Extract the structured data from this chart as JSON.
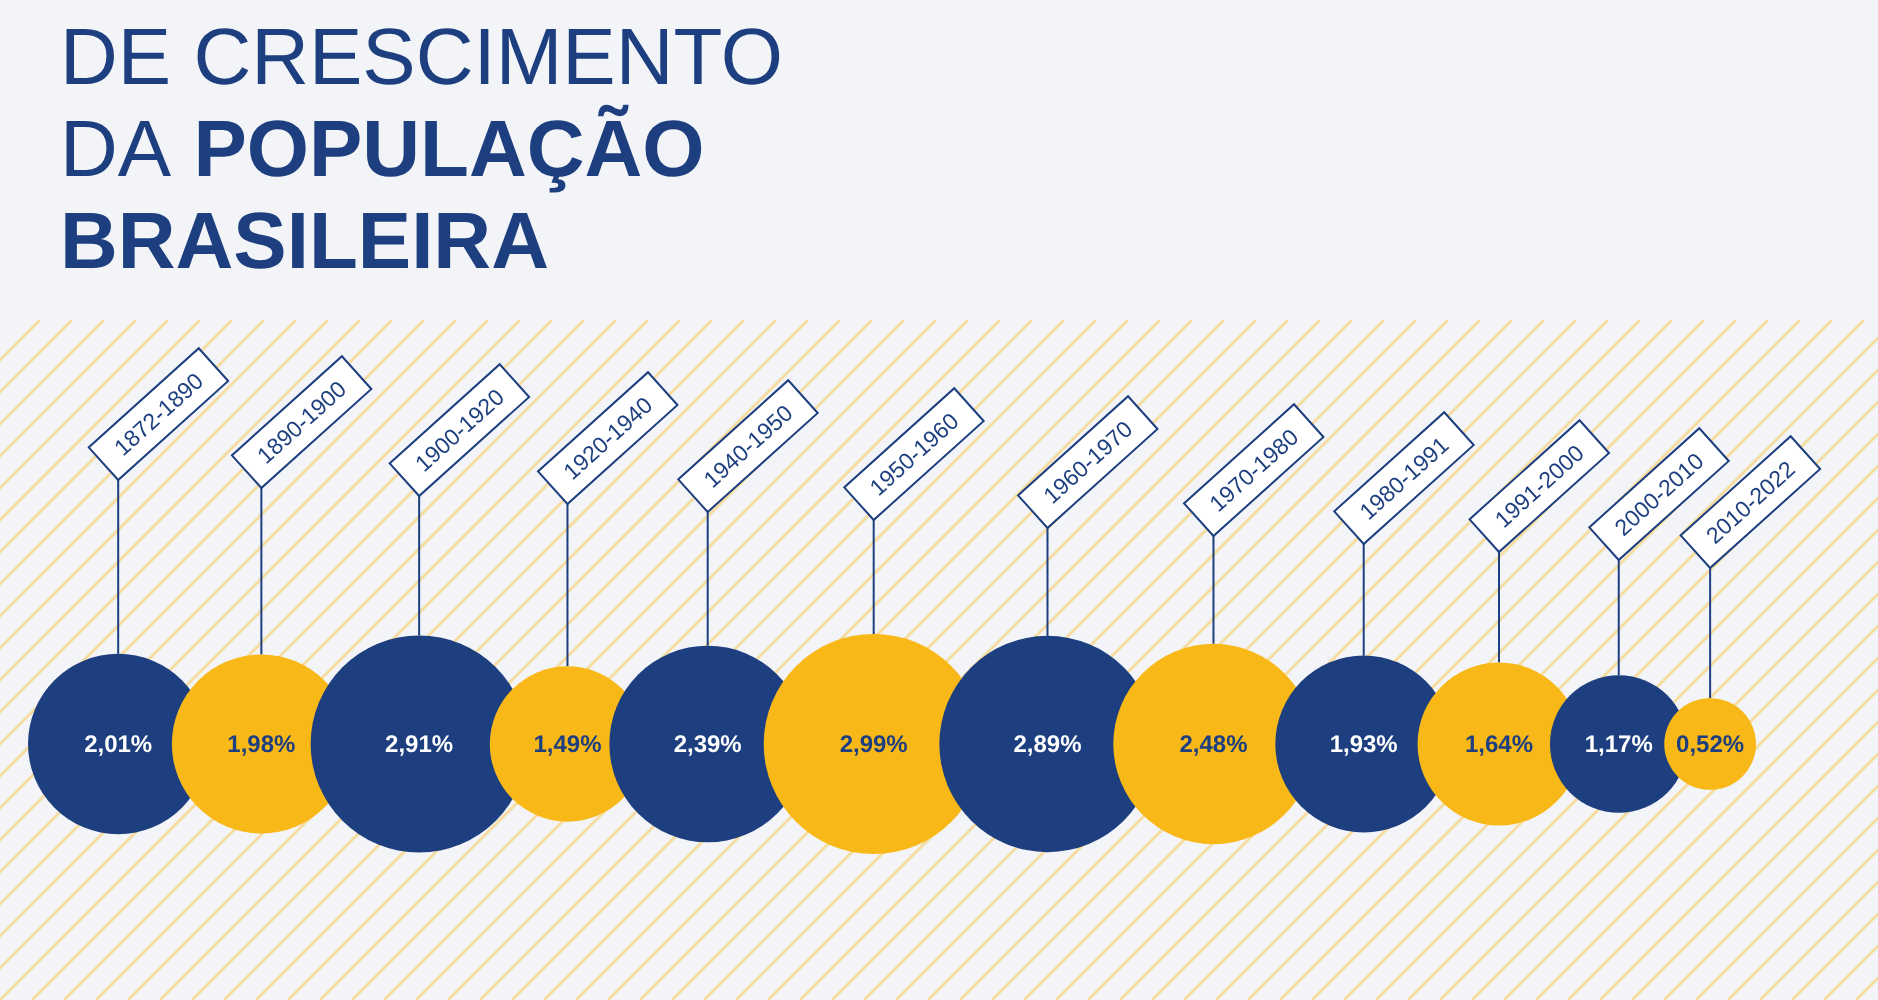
{
  "chart_data": {
    "type": "other",
    "title": "DE CRESCIMENTO\nDA POPULAÇÃO\nBRASILEIRA",
    "categories": [
      "1872-1890",
      "1890-1900",
      "1900-1920",
      "1920-1940",
      "1940-1950",
      "1950-1960",
      "1960-1970",
      "1970-1980",
      "1980-1991",
      "1991-2000",
      "2000-2010",
      "2010-2022"
    ],
    "values": [
      2.01,
      1.98,
      2.91,
      1.49,
      2.39,
      2.99,
      2.89,
      2.48,
      1.93,
      1.64,
      1.17,
      0.52
    ],
    "value_labels": [
      "2,01%",
      "1,98%",
      "2,91%",
      "1,49%",
      "2,39%",
      "2,99%",
      "2,89%",
      "2,48%",
      "1,93%",
      "1,64%",
      "1,17%",
      "0,52%"
    ],
    "colors": [
      "#1d3f7f",
      "#f8b918",
      "#1d3f7f",
      "#f8b918",
      "#1d3f7f",
      "#f8b918",
      "#1d3f7f",
      "#f8b918",
      "#1d3f7f",
      "#f8b918",
      "#1d3f7f",
      "#f8b918"
    ]
  }
}
